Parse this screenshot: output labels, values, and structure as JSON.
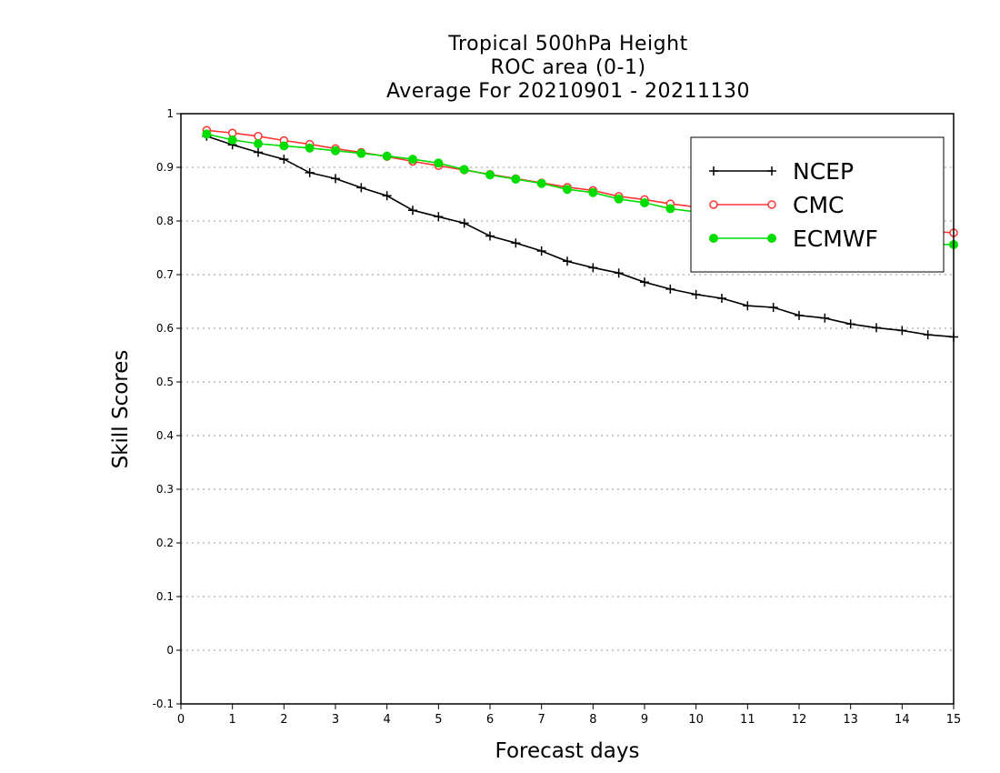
{
  "chart_data": {
    "type": "line",
    "title": [
      "Tropical 500hPa Height",
      "ROC area (0-1)",
      "Average For 20210901 - 20211130"
    ],
    "xlabel": "Forecast days",
    "ylabel": "Skill Scores",
    "xlim": [
      0,
      15
    ],
    "ylim": [
      -0.1,
      1
    ],
    "xticks": [
      "0",
      "1",
      "2",
      "3",
      "4",
      "5",
      "6",
      "7",
      "8",
      "9",
      "10",
      "11",
      "12",
      "13",
      "14",
      "15"
    ],
    "yticks": [
      "-0.1",
      "0",
      "0.1",
      "0.2",
      "0.3",
      "0.4",
      "0.5",
      "0.6",
      "0.7",
      "0.8",
      "0.9",
      "1"
    ],
    "grid": "horizontal dotted",
    "legend_position": "top-right",
    "x": [
      0.5,
      1,
      1.5,
      2,
      2.5,
      3,
      3.5,
      4,
      4.5,
      5,
      5.5,
      6,
      6.5,
      7,
      7.5,
      8,
      8.5,
      9,
      9.5,
      10,
      10.5,
      11,
      11.5,
      12,
      12.5,
      13,
      13.5,
      14,
      14.5,
      15
    ],
    "series": [
      {
        "name": "NCEP",
        "color": "#000000",
        "marker": "plus",
        "values": [
          0.958,
          0.942,
          0.928,
          0.915,
          0.89,
          0.879,
          0.862,
          0.847,
          0.82,
          0.808,
          0.796,
          0.772,
          0.759,
          0.744,
          0.725,
          0.713,
          0.703,
          0.686,
          0.673,
          0.663,
          0.656,
          0.642,
          0.639,
          0.624,
          0.619,
          0.608,
          0.601,
          0.596,
          0.588,
          0.584
        ]
      },
      {
        "name": "CMC",
        "color": "#ff3333",
        "marker": "open-circle",
        "values": [
          0.969,
          0.964,
          0.958,
          0.95,
          0.943,
          0.935,
          0.928,
          0.92,
          0.911,
          0.903,
          0.895,
          0.887,
          0.879,
          0.871,
          0.863,
          0.857,
          0.846,
          0.84,
          0.832,
          0.826,
          0.82,
          0.814,
          0.808,
          0.802,
          0.797,
          0.792,
          0.788,
          0.785,
          0.781,
          0.778
        ]
      },
      {
        "name": "ECMWF",
        "color": "#00dd00",
        "marker": "filled-circle",
        "values": [
          0.962,
          0.951,
          0.944,
          0.94,
          0.936,
          0.931,
          0.926,
          0.921,
          0.915,
          0.908,
          0.896,
          0.886,
          0.878,
          0.87,
          0.859,
          0.853,
          0.841,
          0.834,
          0.823,
          0.817,
          0.81,
          0.801,
          0.795,
          0.788,
          0.782,
          0.776,
          0.77,
          0.764,
          0.757,
          0.756
        ]
      }
    ]
  }
}
